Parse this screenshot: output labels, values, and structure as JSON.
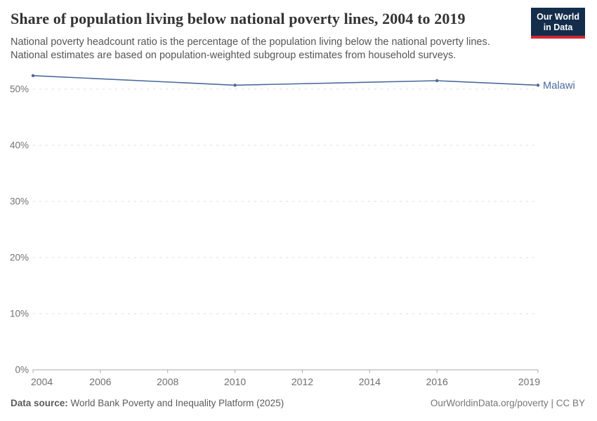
{
  "header": {
    "title": "Share of population living below national poverty lines, 2004 to 2019",
    "subtitle_line1": "National poverty headcount ratio is the percentage of the population living below the national poverty lines.",
    "subtitle_line2": "National estimates are based on population-weighted subgroup estimates from household surveys."
  },
  "logo": {
    "line1": "Our World",
    "line2": "in Data",
    "bg_color": "#142d4b",
    "accent_color": "#d22732"
  },
  "chart_data": {
    "type": "line",
    "title": "Share of population living below national poverty lines, 2004 to 2019",
    "xlabel": "",
    "ylabel": "",
    "x_range": [
      2004,
      2019
    ],
    "ylim": [
      0,
      55
    ],
    "grid": true,
    "gridline_style": "dashed",
    "legend_position": "end-of-line-label",
    "x_ticks": [
      {
        "v": 2004,
        "label": "2004"
      },
      {
        "v": 2006,
        "label": "2006"
      },
      {
        "v": 2008,
        "label": "2008"
      },
      {
        "v": 2010,
        "label": "2010"
      },
      {
        "v": 2012,
        "label": "2012"
      },
      {
        "v": 2014,
        "label": "2014"
      },
      {
        "v": 2016,
        "label": "2016"
      },
      {
        "v": 2019,
        "label": "2019"
      }
    ],
    "y_ticks": [
      {
        "v": 0,
        "label": "0%"
      },
      {
        "v": 10,
        "label": "10%"
      },
      {
        "v": 20,
        "label": "20%"
      },
      {
        "v": 30,
        "label": "30%"
      },
      {
        "v": 40,
        "label": "40%"
      },
      {
        "v": 50,
        "label": "50%"
      }
    ],
    "series": [
      {
        "name": "Malawi",
        "color": "#4c6a9c",
        "points": [
          {
            "x": 2004,
            "y": 52.4
          },
          {
            "x": 2010,
            "y": 50.7
          },
          {
            "x": 2016,
            "y": 51.5
          },
          {
            "x": 2019,
            "y": 50.7
          }
        ]
      }
    ]
  },
  "footer": {
    "data_source_label": "Data source:",
    "data_source_value": "World Bank Poverty and Inequality Platform (2025)",
    "url": "OurWorldinData.org/poverty",
    "separator": "|",
    "license": "CC BY"
  },
  "colors": {
    "line": "#4c6a9c",
    "grid": "#dedede",
    "axis": "#a8a8a8",
    "tick_label": "#737373",
    "x_tick_label": "#6e6e6e",
    "title": "#333333",
    "subtitle": "#555555"
  }
}
